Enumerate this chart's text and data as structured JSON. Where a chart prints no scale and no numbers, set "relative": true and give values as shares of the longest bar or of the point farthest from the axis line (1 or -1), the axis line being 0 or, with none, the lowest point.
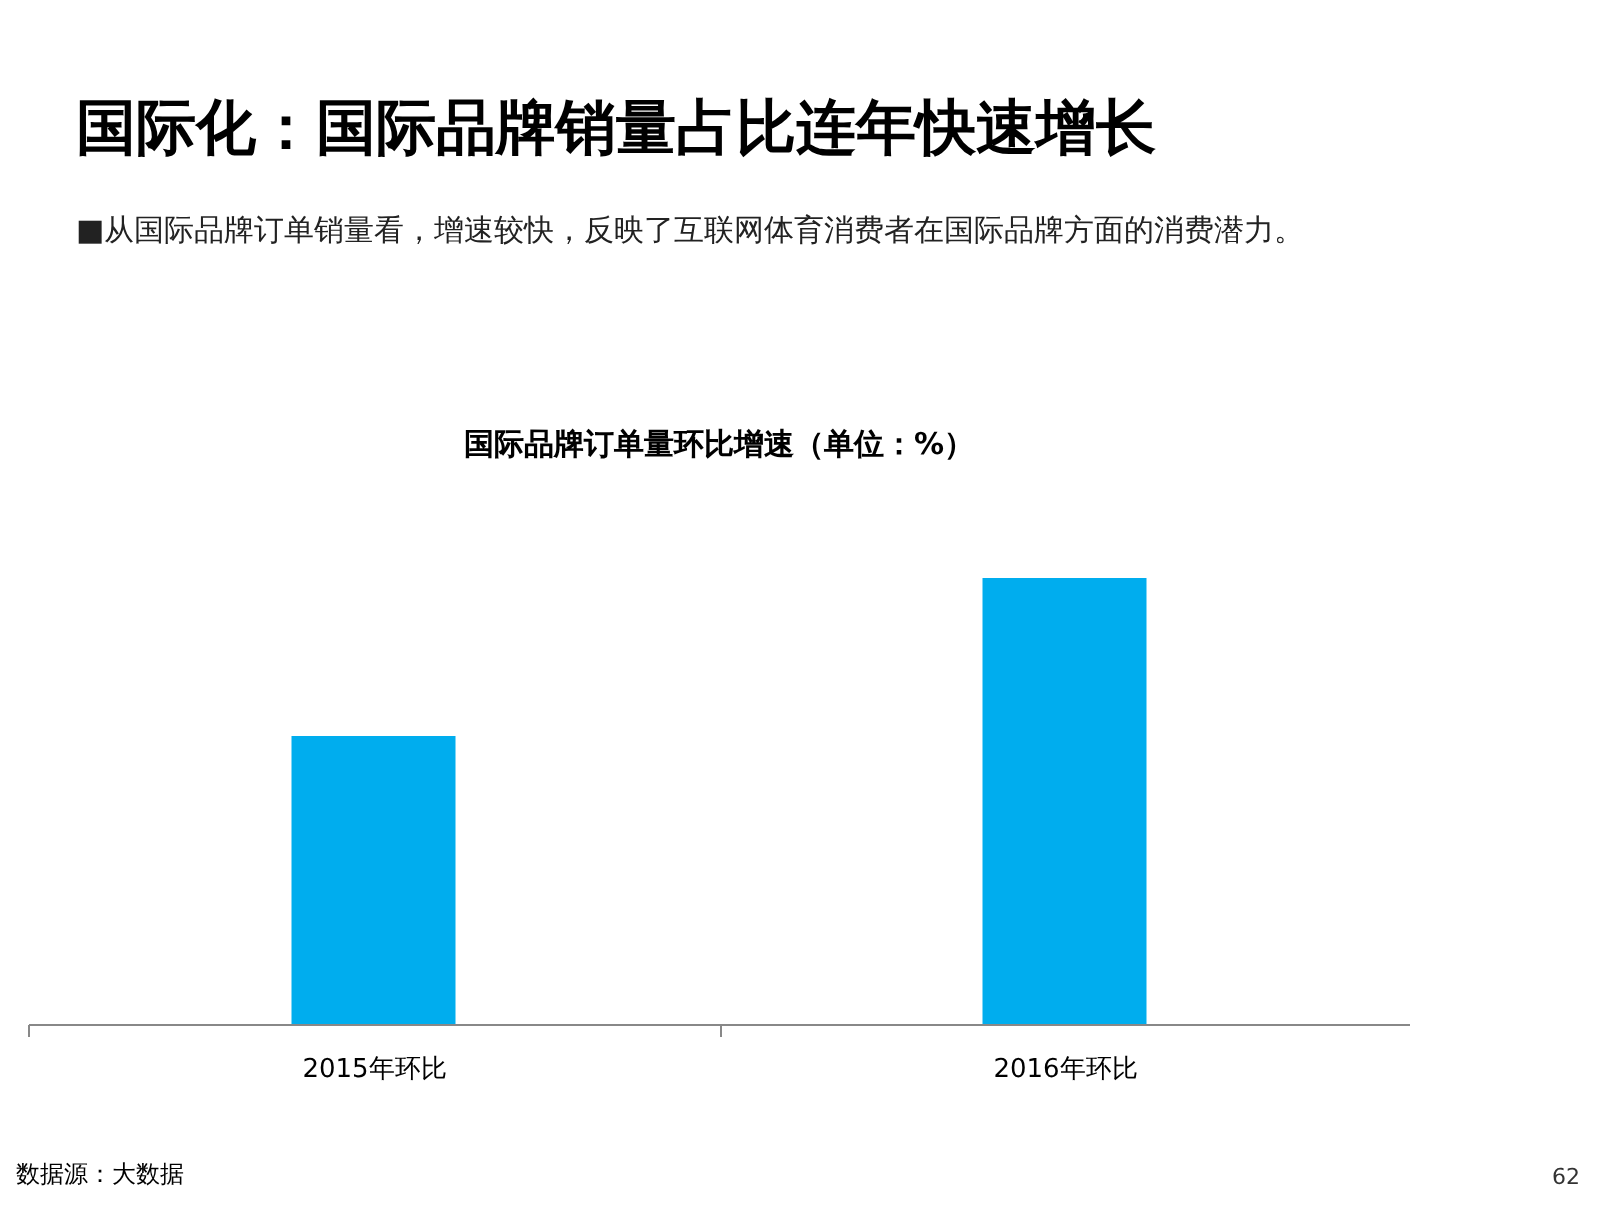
{
  "chart_data": {
    "type": "bar",
    "title": "国际化：国际品牌销量占比连年快速增长",
    "subtitle": "■从国际品牌订单销量看，增速较快，反映了互联网体育消费者在国际品牌方面的消费潜力。",
    "categories": [
      "2015年环比",
      "2016年环比"
    ],
    "values": [
      0.646,
      1
    ],
    "color": "#00adee",
    "relative": true,
    "annotations": [
      "国际品牌订单量环比增速（单位：%）",
      "数据源：大数据",
      "62"
    ]
  }
}
